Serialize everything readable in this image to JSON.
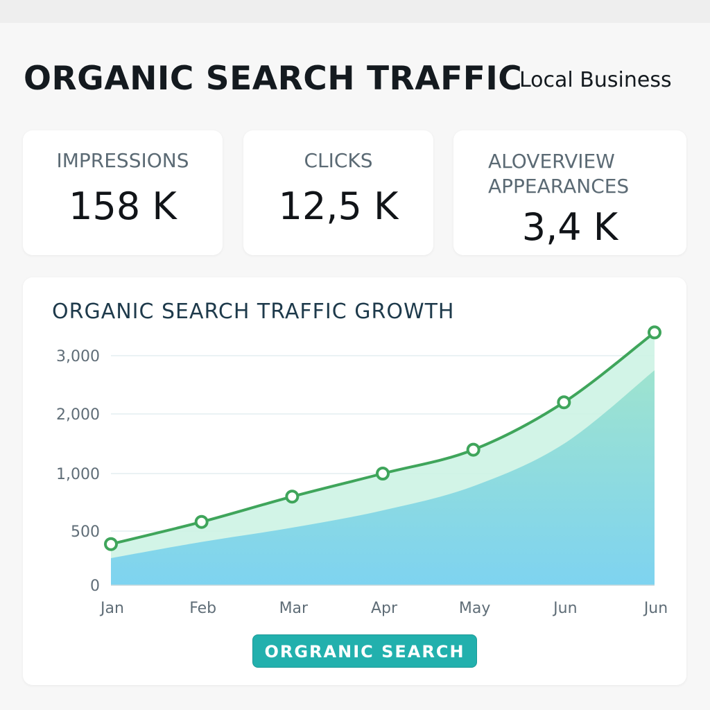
{
  "header": {
    "title": "ORGANIC SEARCH TRAFFIC",
    "subtitle": "Local Business"
  },
  "stats": {
    "impressions": {
      "label": "IMPRESSIONS",
      "value": "158 K"
    },
    "clicks": {
      "label": "CLICKS",
      "value": "12,5 K"
    },
    "aio": {
      "label": "ALOVERVIEW APPEARANCES",
      "value": "3,4 K"
    }
  },
  "legend": {
    "label": "ORGRANIC SEARCH"
  },
  "colors": {
    "line": "#3fa55b",
    "area_upper": "#cdf3e4",
    "area_lower_top": "#9ee3cf",
    "area_lower_bottom": "#7ed3f0",
    "legend_bg": "#22b0ad"
  },
  "chart_data": {
    "type": "area",
    "title": "ORGANIC SEARCH TRAFFIC GROWTH",
    "categories": [
      "Jan",
      "Feb",
      "Mar",
      "Apr",
      "May",
      "Jun",
      "Jun"
    ],
    "ytick_values": [
      0,
      500,
      1000,
      2000,
      3000
    ],
    "ytick_labels": [
      "0",
      "500",
      "1,000",
      "2,000",
      "3,000"
    ],
    "y_scale": "piecewise-linear",
    "series": [
      {
        "values": [
          380,
          580,
          800,
          1000,
          1400,
          2200,
          3400
        ],
        "style": "line-with-markers-and-fill"
      },
      {
        "values": [
          250,
          400,
          530,
          680,
          890,
          1500,
          2750
        ],
        "style": "area"
      }
    ],
    "grid": "horizontal",
    "legend_position": "bottom-center"
  }
}
